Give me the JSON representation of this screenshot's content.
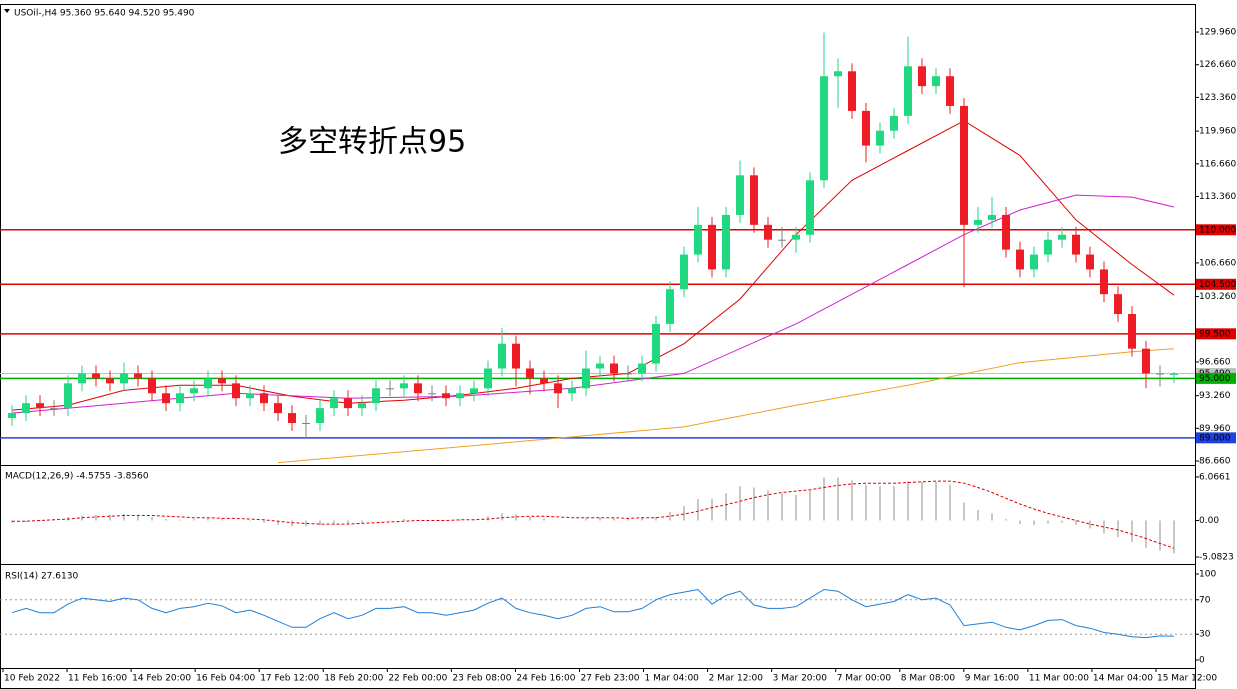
{
  "chart_data": [
    {
      "type": "candlestick",
      "header": "USOil-,H4  95.360 95.640 94.520 95.490",
      "annotation": "多空转折点95",
      "open": [
        91.0,
        91.5,
        92.5,
        92.0,
        92.0,
        94.5,
        95.5,
        95.0,
        94.5,
        95.5,
        95.0,
        93.5,
        92.5,
        93.5,
        94.0,
        95.0,
        94.5,
        93.0,
        93.5,
        92.5,
        91.5,
        90.5,
        90.5,
        92.0,
        93.0,
        92.0,
        92.5,
        94.0,
        94.0,
        94.5,
        93.5,
        93.5,
        93.0,
        93.5,
        94.0,
        96.0,
        98.5,
        96.0,
        95.0,
        94.5,
        93.5,
        94.0,
        96.0,
        96.5,
        95.5,
        95.5,
        96.5,
        100.5,
        104.0,
        107.5,
        110.5,
        106.0,
        111.5,
        115.5,
        110.5,
        109.0,
        109.0,
        109.5,
        115.0,
        125.5,
        126.0,
        122.0,
        118.5,
        120.0,
        121.5,
        126.5,
        124.5,
        125.5,
        122.5,
        110.5,
        111.0,
        111.5,
        108.0,
        106.0,
        107.5,
        109.0,
        109.5,
        107.5,
        106.0,
        103.5,
        101.5,
        98.0,
        95.5,
        95.36
      ],
      "high": [
        92.3,
        93.3,
        93.3,
        92.8,
        95.3,
        96.3,
        96.3,
        95.8,
        96.6,
        96.3,
        95.8,
        94.3,
        94.3,
        94.8,
        95.8,
        95.8,
        95.3,
        94.3,
        94.3,
        93.3,
        92.3,
        91.3,
        92.8,
        93.8,
        93.8,
        93.3,
        94.8,
        94.8,
        95.3,
        95.3,
        94.3,
        94.3,
        94.3,
        94.8,
        96.8,
        100.1,
        99.3,
        96.8,
        95.8,
        95.3,
        94.8,
        97.8,
        97.3,
        97.3,
        96.3,
        97.3,
        101.3,
        104.8,
        108.3,
        112.3,
        111.3,
        112.3,
        117.0,
        116.3,
        111.3,
        110.3,
        110.3,
        115.8,
        129.9,
        127.3,
        126.8,
        122.8,
        120.8,
        122.3,
        129.5,
        127.3,
        126.3,
        126.3,
        123.3,
        112.3,
        113.3,
        112.3,
        108.8,
        108.3,
        109.8,
        110.3,
        110.3,
        108.3,
        106.8,
        104.3,
        102.3,
        98.8,
        96.3,
        95.64
      ],
      "low": [
        90.2,
        90.7,
        91.2,
        91.2,
        91.2,
        93.7,
        94.2,
        93.7,
        93.7,
        94.2,
        92.7,
        91.7,
        91.7,
        92.7,
        93.2,
        93.7,
        92.2,
        92.2,
        91.7,
        90.7,
        89.7,
        88.9,
        89.7,
        91.2,
        91.2,
        91.2,
        91.7,
        93.2,
        93.2,
        92.7,
        92.7,
        92.2,
        92.2,
        92.7,
        93.2,
        95.2,
        94.2,
        93.4,
        93.7,
        92.0,
        92.7,
        93.2,
        95.2,
        94.7,
        94.7,
        94.7,
        95.7,
        99.7,
        103.2,
        106.7,
        105.2,
        105.2,
        110.7,
        109.7,
        108.2,
        108.2,
        107.7,
        108.7,
        114.2,
        122.3,
        121.2,
        116.8,
        117.7,
        119.2,
        120.7,
        123.7,
        123.7,
        121.7,
        104.2,
        109.7,
        110.2,
        107.2,
        105.2,
        105.2,
        106.7,
        108.2,
        106.7,
        105.2,
        102.7,
        100.7,
        97.2,
        94.0,
        94.2,
        94.52
      ],
      "close": [
        91.5,
        92.5,
        92.0,
        92.0,
        94.5,
        95.5,
        95.0,
        94.5,
        95.5,
        95.0,
        93.5,
        92.5,
        93.5,
        94.0,
        95.0,
        94.5,
        93.0,
        93.5,
        92.5,
        91.5,
        90.5,
        90.5,
        92.0,
        93.0,
        92.0,
        92.5,
        94.0,
        94.0,
        94.5,
        93.5,
        93.5,
        93.0,
        93.5,
        94.0,
        96.0,
        98.5,
        96.0,
        95.0,
        94.5,
        93.5,
        94.0,
        96.0,
        96.5,
        95.5,
        95.5,
        96.5,
        100.5,
        104.0,
        107.5,
        110.5,
        106.0,
        111.5,
        115.5,
        110.5,
        109.0,
        109.0,
        109.5,
        115.0,
        125.5,
        126.0,
        122.0,
        118.5,
        120.0,
        121.5,
        126.5,
        124.5,
        125.5,
        122.5,
        110.5,
        111.0,
        111.5,
        108.0,
        106.0,
        107.5,
        109.0,
        109.5,
        107.5,
        106.0,
        103.5,
        101.5,
        98.0,
        95.5,
        95.5,
        95.49
      ],
      "up_color": "#20d880",
      "down_color": "#ee1c25",
      "doji_color": "#808080",
      "ylim": [
        86.36,
        132.69
      ],
      "yticks": [
        {
          "value": 129.96,
          "label": "129.960"
        },
        {
          "value": 126.66,
          "label": "126.660"
        },
        {
          "value": 123.36,
          "label": "123.360"
        },
        {
          "value": 119.96,
          "label": "119.960"
        },
        {
          "value": 116.66,
          "label": "116.660"
        },
        {
          "value": 113.36,
          "label": "113.360"
        },
        {
          "value": 106.66,
          "label": "106.660"
        },
        {
          "value": 103.26,
          "label": "103.260"
        },
        {
          "value": 96.66,
          "label": "96.660"
        },
        {
          "value": 93.26,
          "label": "93.260"
        },
        {
          "value": 89.96,
          "label": "89.960"
        },
        {
          "value": 86.66,
          "label": "86.660"
        }
      ],
      "last_price": {
        "value": 95.49,
        "label": "95.490"
      },
      "levels": [
        {
          "value": 110,
          "label": "110.000",
          "color": "#e00000"
        },
        {
          "value": 104.5,
          "label": "104.500",
          "color": "#e00000"
        },
        {
          "value": 99.5,
          "label": "99.500",
          "color": "#e00000"
        },
        {
          "value": 95,
          "label": "95.000",
          "color": "#00b000"
        },
        {
          "value": 89,
          "label": "89.000",
          "color": "#2040e0"
        }
      ],
      "moving_averages": [
        {
          "color": "#e00000",
          "x": [
            0,
            4,
            8,
            12,
            16,
            20,
            24,
            28,
            32,
            36,
            40,
            44,
            48,
            52,
            56,
            60,
            64,
            68,
            72,
            76,
            80,
            83
          ],
          "values": [
            91.8,
            92.3,
            93.8,
            94.3,
            94.3,
            93.2,
            92.5,
            92.8,
            93.3,
            94.0,
            95.0,
            95.5,
            98.5,
            103.0,
            109.5,
            115.0,
            118.0,
            121.0,
            117.5,
            111.0,
            106.5,
            103.4
          ]
        },
        {
          "color": "#d020d0",
          "x": [
            0,
            8,
            16,
            24,
            32,
            40,
            48,
            56,
            60,
            64,
            68,
            72,
            76,
            80,
            83
          ],
          "values": [
            91.5,
            92.5,
            93.5,
            93.0,
            93.2,
            94.0,
            95.5,
            100.5,
            103.5,
            106.5,
            109.5,
            112.0,
            113.5,
            113.3,
            112.3
          ]
        },
        {
          "color": "#f0a020",
          "x": [
            19,
            28,
            40,
            48,
            56,
            64,
            72,
            80,
            83
          ],
          "values": [
            86.5,
            87.6,
            89.1,
            90.1,
            92.3,
            94.3,
            96.6,
            97.7,
            98.0
          ]
        }
      ],
      "x_labels": [
        "10 Feb 2022",
        "11 Feb 16:00",
        "14 Feb 20:00",
        "16 Feb 04:00",
        "17 Feb 12:00",
        "18 Feb 20:00",
        "22 Feb 00:00",
        "23 Feb 08:00",
        "24 Feb 16:00",
        "27 Feb 23:00",
        "1 Mar 04:00",
        "2 Mar 12:00",
        "3 Mar 20:00",
        "7 Mar 00:00",
        "8 Mar 08:00",
        "9 Mar 16:00",
        "11 Mar 00:00",
        "14 Mar 04:00",
        "15 Mar 12:00"
      ]
    },
    {
      "type": "macd",
      "header": "MACD(12,26,9) -4.5755 -3.8560",
      "histogram": [
        -0.3,
        -0.2,
        -0.1,
        0.2,
        0.5,
        0.7,
        0.8,
        0.8,
        0.9,
        0.8,
        0.5,
        0.2,
        0.1,
        0.2,
        0.3,
        0.3,
        0.0,
        -0.1,
        -0.3,
        -0.6,
        -0.8,
        -0.8,
        -0.6,
        -0.4,
        -0.4,
        -0.3,
        0.0,
        0.1,
        0.2,
        0.1,
        0.1,
        0.0,
        0.1,
        0.2,
        0.6,
        1.0,
        0.8,
        0.5,
        0.3,
        0.0,
        0.0,
        0.3,
        0.4,
        0.3,
        0.3,
        0.5,
        0.5,
        1.2,
        2.0,
        3.0,
        3.0,
        3.8,
        4.8,
        4.6,
        4.2,
        3.8,
        3.6,
        4.2,
        6.0,
        6.0,
        5.6,
        5.0,
        4.8,
        4.8,
        5.5,
        5.4,
        5.4,
        5.0,
        2.5,
        1.5,
        1.0,
        0.2,
        -0.5,
        -0.6,
        -0.4,
        -0.3,
        -0.6,
        -1.1,
        -1.8,
        -2.3,
        -3.0,
        -3.8,
        -4.2,
        -4.5755
      ],
      "signal": [
        -0.1,
        -0.1,
        0,
        0.1,
        0.2,
        0.4,
        0.5,
        0.6,
        0.7,
        0.7,
        0.7,
        0.6,
        0.5,
        0.4,
        0.4,
        0.3,
        0.3,
        0.2,
        0.1,
        -0.1,
        -0.3,
        -0.4,
        -0.5,
        -0.5,
        -0.5,
        -0.4,
        -0.3,
        -0.2,
        -0.1,
        0,
        0,
        0,
        0.1,
        0.1,
        0.2,
        0.4,
        0.5,
        0.6,
        0.6,
        0.5,
        0.4,
        0.4,
        0.4,
        0.4,
        0.3,
        0.4,
        0.4,
        0.6,
        0.9,
        1.3,
        1.8,
        2.2,
        2.7,
        3.2,
        3.6,
        3.9,
        4.1,
        4.3,
        4.6,
        4.9,
        5.1,
        5.2,
        5.2,
        5.2,
        5.3,
        5.4,
        5.5,
        5.5,
        5.2,
        4.6,
        3.9,
        3.1,
        2.3,
        1.6,
        1.0,
        0.5,
        0.0,
        -0.5,
        -0.9,
        -1.3,
        -1.9,
        -2.5,
        -3.2,
        -3.856
      ],
      "histogram_color": "#b4b4b4",
      "signal_color": "#e00000",
      "ylim": [
        -5.78,
        7.46
      ],
      "yticks": [
        6.0661,
        {
          "value": 0,
          "label": "0.00"
        },
        -5.0823
      ]
    },
    {
      "type": "rsi",
      "header": "RSI(14) 27.6130",
      "values": [
        55,
        60,
        55,
        55,
        65,
        72,
        70,
        68,
        72,
        70,
        60,
        55,
        60,
        62,
        66,
        63,
        55,
        58,
        52,
        45,
        38,
        38,
        48,
        55,
        48,
        52,
        60,
        60,
        62,
        55,
        55,
        52,
        55,
        58,
        66,
        72,
        60,
        55,
        52,
        48,
        52,
        60,
        62,
        56,
        56,
        60,
        70,
        76,
        79,
        82,
        65,
        75,
        80,
        64,
        60,
        60,
        62,
        72,
        82,
        80,
        70,
        62,
        65,
        68,
        76,
        70,
        72,
        64,
        40,
        42,
        44,
        38,
        35,
        40,
        46,
        47,
        40,
        37,
        32,
        30,
        27,
        26,
        28,
        27.613
      ],
      "color": "#1e7fd8",
      "ylim": [
        -9.3,
        109.3
      ],
      "yticks": [
        100,
        70,
        30,
        0
      ]
    }
  ]
}
